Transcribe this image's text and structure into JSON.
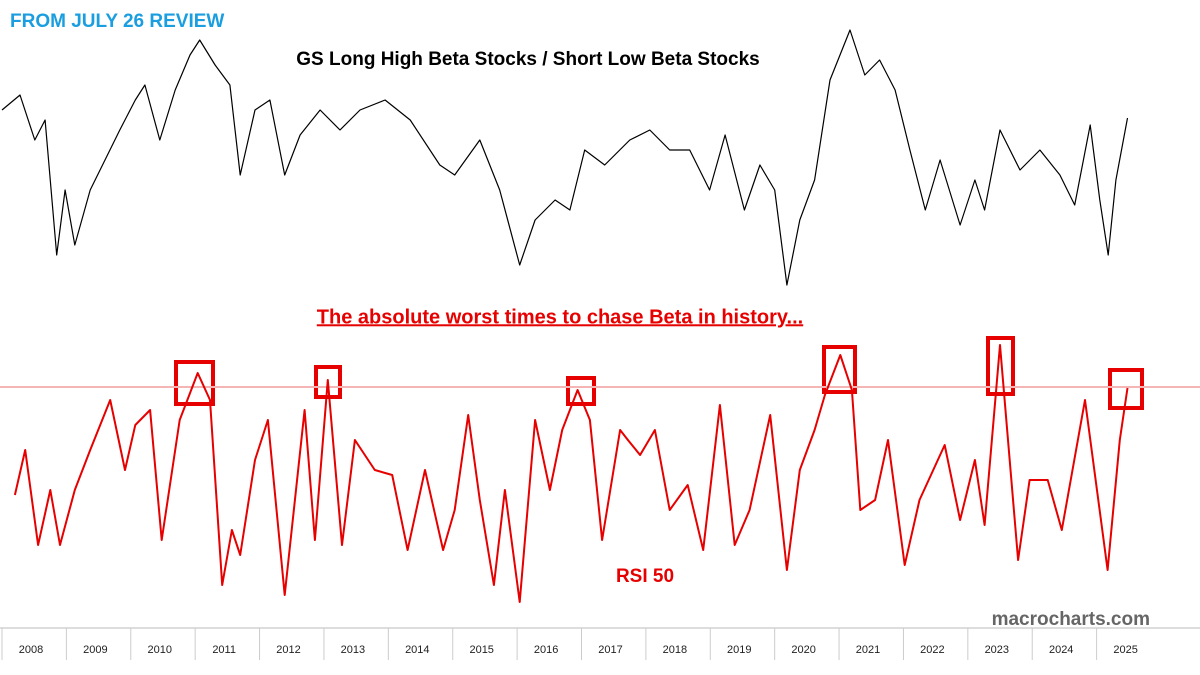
{
  "header": "FROM JULY 26 REVIEW",
  "watermark": "macrocharts.com",
  "chart_data": [
    {
      "type": "line",
      "title": "GS Long High Beta Stocks / Short Low Beta Stocks",
      "x": [
        2008.0,
        2008.28,
        2008.51,
        2008.67,
        2008.85,
        2008.98,
        2009.13,
        2009.37,
        2009.6,
        2009.83,
        2010.07,
        2010.22,
        2010.45,
        2010.69,
        2010.92,
        2011.07,
        2011.31,
        2011.54,
        2011.7,
        2011.93,
        2012.16,
        2012.39,
        2012.63,
        2012.94,
        2013.25,
        2013.56,
        2013.95,
        2014.34,
        2014.8,
        2015.03,
        2015.42,
        2015.73,
        2016.04,
        2016.28,
        2016.59,
        2016.82,
        2017.05,
        2017.36,
        2017.75,
        2018.06,
        2018.37,
        2018.68,
        2018.99,
        2019.23,
        2019.53,
        2019.77,
        2020.0,
        2020.19,
        2020.39,
        2020.62,
        2020.86,
        2021.17,
        2021.4,
        2021.63,
        2021.87,
        2022.1,
        2022.34,
        2022.57,
        2022.88,
        2023.11,
        2023.26,
        2023.5,
        2023.81,
        2024.12,
        2024.43,
        2024.66,
        2024.9,
        2025.05,
        2025.18,
        2025.3,
        2025.48
      ],
      "values": [
        190,
        205,
        160,
        180,
        45,
        110,
        55,
        110,
        140,
        170,
        200,
        215,
        160,
        210,
        245,
        260,
        235,
        215,
        125,
        190,
        200,
        125,
        165,
        190,
        170,
        190,
        200,
        180,
        135,
        125,
        160,
        110,
        35,
        80,
        100,
        90,
        150,
        135,
        160,
        170,
        150,
        150,
        110,
        165,
        90,
        135,
        110,
        15,
        80,
        120,
        220,
        270,
        225,
        240,
        210,
        150,
        90,
        140,
        75,
        120,
        90,
        170,
        130,
        150,
        125,
        95,
        175,
        100,
        45,
        120,
        182
      ],
      "color": "#000000",
      "xlim": [
        2008,
        2026
      ],
      "ylim": [
        0,
        280
      ]
    },
    {
      "type": "line",
      "annotation": "The absolute worst times to chase Beta in history...",
      "series_label": "RSI 50",
      "x": [
        2008.2,
        2008.36,
        2008.56,
        2008.75,
        2008.9,
        2009.13,
        2009.37,
        2009.68,
        2009.91,
        2010.07,
        2010.3,
        2010.48,
        2010.76,
        2011.04,
        2011.23,
        2011.42,
        2011.57,
        2011.7,
        2011.93,
        2012.13,
        2012.39,
        2012.7,
        2012.86,
        2013.06,
        2013.28,
        2013.48,
        2013.79,
        2014.06,
        2014.3,
        2014.57,
        2014.85,
        2015.03,
        2015.24,
        2015.42,
        2015.64,
        2015.81,
        2016.04,
        2016.28,
        2016.51,
        2016.7,
        2016.94,
        2017.13,
        2017.32,
        2017.6,
        2017.72,
        2017.91,
        2018.14,
        2018.37,
        2018.65,
        2018.89,
        2019.15,
        2019.38,
        2019.61,
        2019.93,
        2020.19,
        2020.39,
        2020.62,
        2020.78,
        2021.02,
        2021.2,
        2021.33,
        2021.56,
        2021.76,
        2022.02,
        2022.25,
        2022.64,
        2022.88,
        2023.11,
        2023.26,
        2023.5,
        2023.78,
        2023.96,
        2024.24,
        2024.46,
        2024.82,
        2025.17,
        2025.36,
        2025.48
      ],
      "values": [
        145,
        190,
        95,
        150,
        95,
        150,
        190,
        240,
        170,
        215,
        230,
        100,
        220,
        267,
        240,
        55,
        110,
        85,
        180,
        220,
        45,
        230,
        100,
        260,
        95,
        200,
        170,
        165,
        90,
        170,
        90,
        130,
        225,
        140,
        55,
        150,
        38,
        220,
        150,
        210,
        250,
        220,
        100,
        210,
        200,
        185,
        210,
        130,
        155,
        90,
        235,
        95,
        130,
        225,
        70,
        170,
        210,
        245,
        285,
        250,
        130,
        140,
        200,
        75,
        140,
        195,
        120,
        180,
        115,
        295,
        80,
        160,
        160,
        110,
        240,
        70,
        200,
        252
      ],
      "color": "#e60000",
      "threshold": 253,
      "threshold_color": "#f5b5b5",
      "xlim": [
        2008,
        2026
      ],
      "ylim": [
        0,
        300
      ],
      "categories": [
        "2008",
        "2009",
        "2010",
        "2011",
        "2012",
        "2013",
        "2014",
        "2015",
        "2016",
        "2017",
        "2018",
        "2019",
        "2020",
        "2021",
        "2022",
        "2023",
        "2024",
        "2025"
      ]
    }
  ]
}
